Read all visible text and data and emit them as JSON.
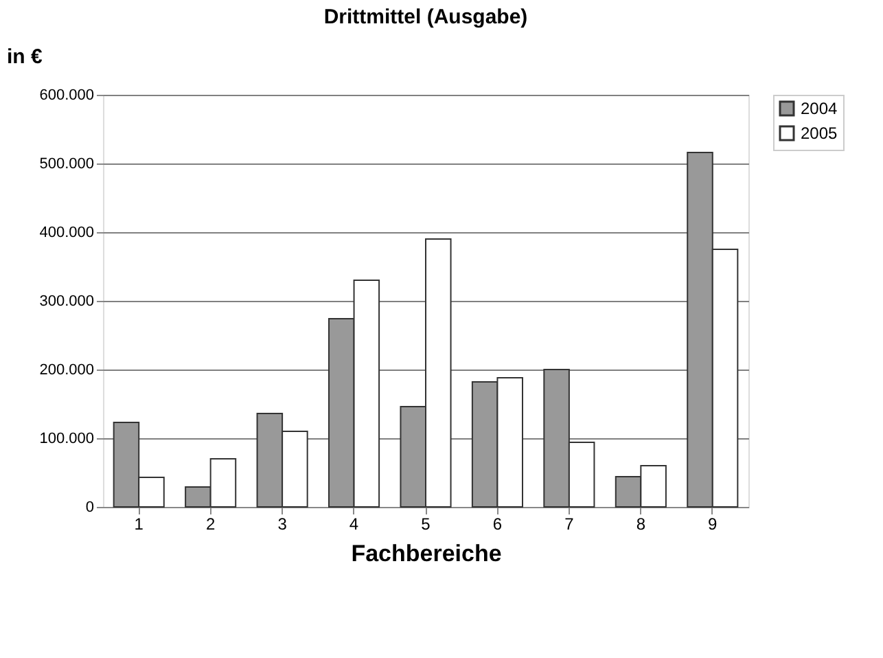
{
  "chart_data": {
    "type": "bar",
    "title": "Drittmittel (Ausgabe)",
    "ylabel": "in €",
    "xlabel": "Fachbereiche",
    "categories": [
      "1",
      "2",
      "3",
      "4",
      "5",
      "6",
      "7",
      "8",
      "9"
    ],
    "series": [
      {
        "name": "2004",
        "color": "#999999",
        "values": [
          123000,
          29000,
          136000,
          274000,
          146000,
          182000,
          200000,
          44000,
          516000
        ]
      },
      {
        "name": "2005",
        "color": "#ffffff",
        "values": [
          43000,
          70000,
          110000,
          330000,
          390000,
          188000,
          94000,
          60000,
          375000
        ]
      }
    ],
    "ylim": [
      0,
      600000
    ],
    "yticks": [
      {
        "value": 0,
        "label": "0"
      },
      {
        "value": 100000,
        "label": "100.000"
      },
      {
        "value": 200000,
        "label": "200.000"
      },
      {
        "value": 300000,
        "label": "300.000"
      },
      {
        "value": 400000,
        "label": "400.000"
      },
      {
        "value": 500000,
        "label": "500.000"
      },
      {
        "value": 600000,
        "label": "600.000"
      }
    ],
    "grid": "y",
    "legend": "right"
  }
}
